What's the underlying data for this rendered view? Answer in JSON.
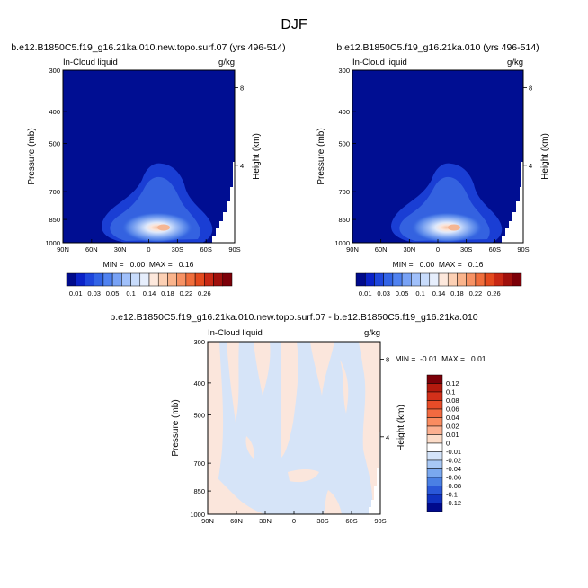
{
  "figure": {
    "title": "DJF"
  },
  "chart_data": [
    {
      "type": "heatmap",
      "title": "b.e12.B1850C5.f19_g16.21ka.010.new.topo.surf.07 (yrs 496-514)",
      "left_label": "In-Cloud liquid",
      "right_label": "g/kg",
      "ylabel": "Pressure (mb)",
      "ylabel_right": "Height (km)",
      "xticks": [
        "90N",
        "60N",
        "30N",
        "0",
        "30S",
        "60S",
        "90S"
      ],
      "yticks": [
        "300",
        "400",
        "500",
        "700",
        "850",
        "1000"
      ],
      "yticks_right": [
        "8",
        "4"
      ],
      "ylim": [
        1000,
        300
      ],
      "stats": "MIN =   0.00  MAX =   0.16",
      "colorbar_levels": [
        "0.01",
        "0.03",
        "0.05",
        "0.1",
        "0.14",
        "0.18",
        "0.22",
        "0.26"
      ],
      "colors": [
        "#000a8c",
        "#0a22c8",
        "#1e46dc",
        "#3264e6",
        "#5082f0",
        "#78a2f5",
        "#a0c0fa",
        "#c8dcfc",
        "#e6eefc",
        "#fde8dc",
        "#fcd0b4",
        "#fab48c",
        "#f79264",
        "#f06e3c",
        "#e44a1e",
        "#c82814",
        "#a0100c",
        "#7c0008"
      ]
    },
    {
      "type": "heatmap",
      "title": "b.e12.B1850C5.f19_g16.21ka.010 (yrs 496-514)",
      "left_label": "In-Cloud liquid",
      "right_label": "g/kg",
      "ylabel": "Pressure (mb)",
      "ylabel_right": "Height (km)",
      "xticks": [
        "90N",
        "60N",
        "30N",
        "0",
        "30S",
        "60S",
        "90S"
      ],
      "yticks": [
        "300",
        "400",
        "500",
        "700",
        "850",
        "1000"
      ],
      "yticks_right": [
        "8",
        "4"
      ],
      "ylim": [
        1000,
        300
      ],
      "stats": "MIN =   0.00  MAX =   0.16",
      "colorbar_levels": [
        "0.01",
        "0.03",
        "0.05",
        "0.1",
        "0.14",
        "0.18",
        "0.22",
        "0.26"
      ]
    },
    {
      "type": "heatmap",
      "title": "b.e12.B1850C5.f19_g16.21ka.010.new.topo.surf.07 - b.e12.B1850C5.f19_g16.21ka.010",
      "left_label": "In-Cloud liquid",
      "right_label": "g/kg",
      "ylabel": "Pressure (mb)",
      "ylabel_right": "Height (km)",
      "xticks": [
        "90N",
        "60N",
        "30N",
        "0",
        "30S",
        "60S",
        "90S"
      ],
      "yticks": [
        "300",
        "400",
        "500",
        "700",
        "850",
        "1000"
      ],
      "yticks_right": [
        "8",
        "4"
      ],
      "ylim": [
        1000,
        300
      ],
      "stats": "MIN =  -0.01  MAX =   0.01",
      "colorbar_levels": [
        "0.12",
        "0.1",
        "0.08",
        "0.06",
        "0.04",
        "0.02",
        "0.01",
        "0",
        "-0.01",
        "-0.02",
        "-0.04",
        "-0.06",
        "-0.08",
        "-0.1",
        "-0.12"
      ],
      "colors": [
        "#7c0008",
        "#b41a0e",
        "#d2301a",
        "#e84c28",
        "#f26a40",
        "#fa8c60",
        "#fcb090",
        "#fcdcc8",
        "#ffffff",
        "#d4e4fa",
        "#a8c8f5",
        "#7aa8ef",
        "#4a80e4",
        "#2a58d8",
        "#1032c0",
        "#000a8c"
      ]
    }
  ]
}
